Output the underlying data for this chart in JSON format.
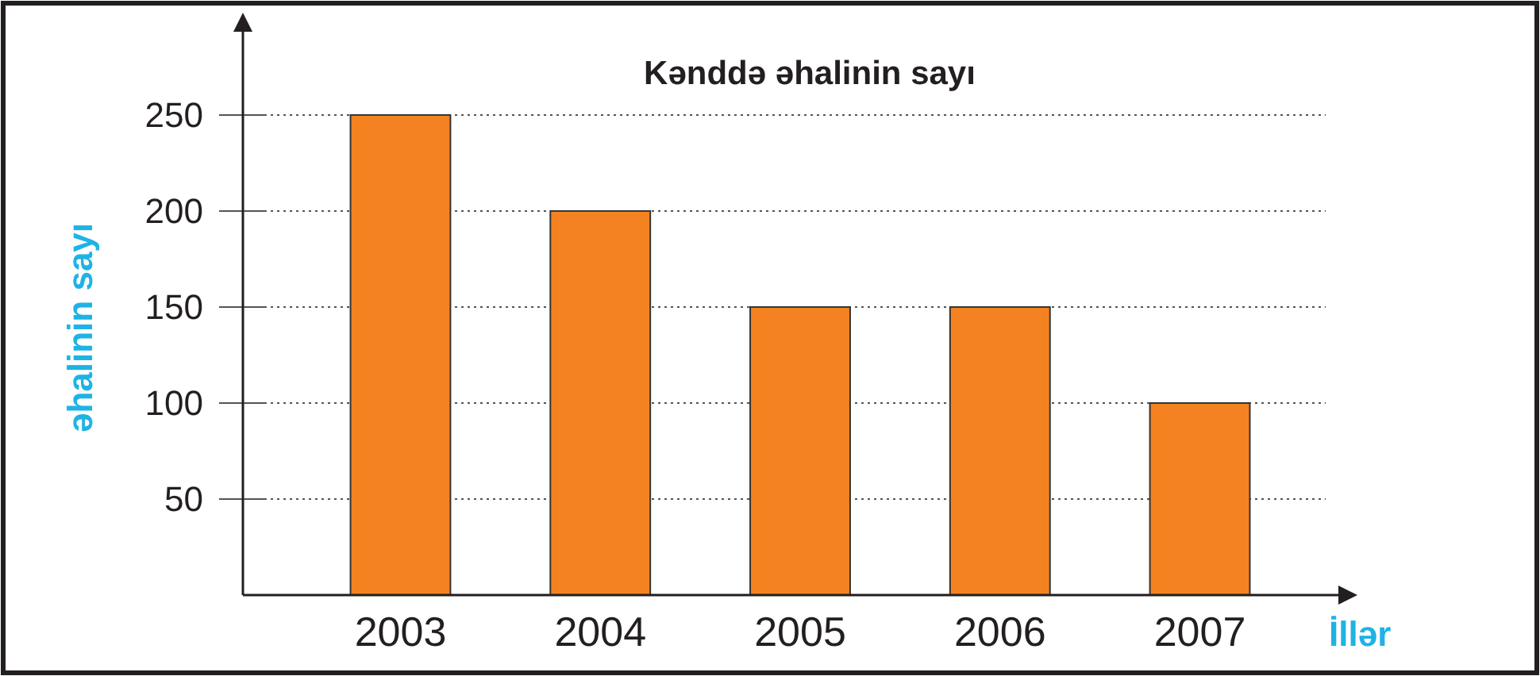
{
  "chart_data": {
    "type": "bar",
    "title": "Kənddə əhalinin sayı",
    "xlabel": "İllər",
    "ylabel": "əhalinin sayı",
    "categories": [
      "2003",
      "2004",
      "2005",
      "2006",
      "2007"
    ],
    "values": [
      250,
      200,
      150,
      150,
      100
    ],
    "color": "#f58220",
    "ylim": [
      0,
      295
    ],
    "yticks": [
      50,
      100,
      150,
      200,
      250
    ],
    "grid": "y"
  }
}
